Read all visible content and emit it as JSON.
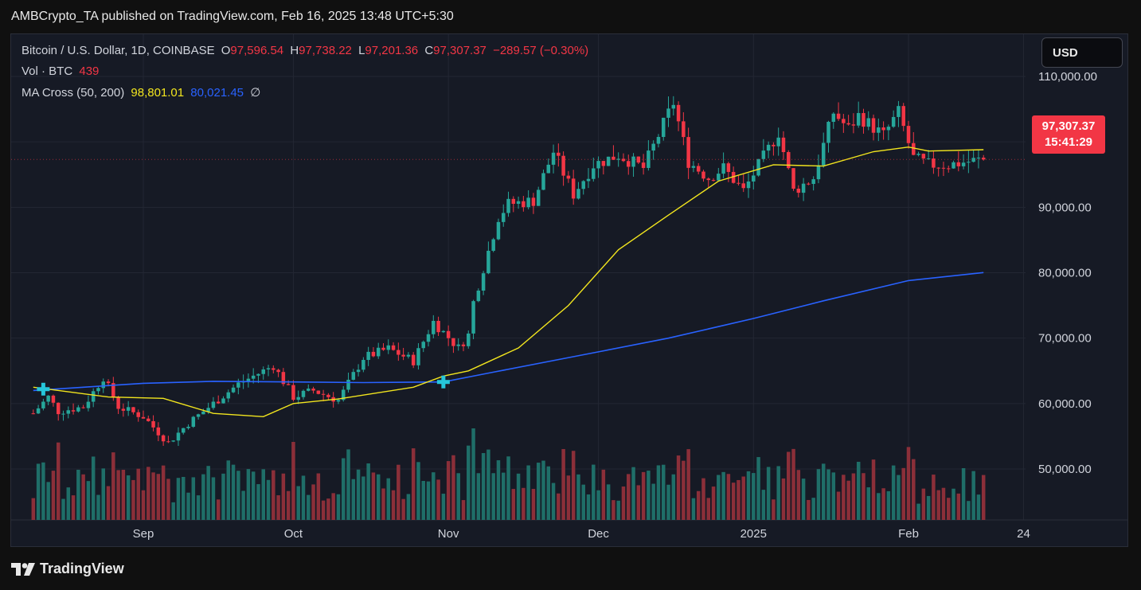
{
  "header": {
    "publish_line": "AMBCrypto_TA published on TradingView.com, Feb 16, 2025 13:48 UTC+5:30"
  },
  "legend": {
    "symbol": "Bitcoin / U.S. Dollar, 1D, COINBASE",
    "o_label": "O",
    "o_value": "97,596.54",
    "h_label": "H",
    "h_value": "97,738.22",
    "l_label": "L",
    "l_value": "97,201.36",
    "c_label": "C",
    "c_value": "97,307.37",
    "change": "−289.57 (−0.30%)",
    "vol_label": "Vol · BTC",
    "vol_value": "439",
    "ma_label": "MA Cross (50, 200)",
    "ma_fast": "98,801.01",
    "ma_slow": "80,021.45",
    "ma_icon": "∅"
  },
  "currency": "USD",
  "price_tag": {
    "price": "97,307.37",
    "countdown": "15:41:29"
  },
  "footer": {
    "brand": "TradingView",
    "logo_icon": "tradingview-logo"
  },
  "colors": {
    "up": "#26a69a",
    "down": "#f23645",
    "ma_fast": "#f2e51e",
    "ma_slow": "#2962ff",
    "cross_marker": "#26c6da",
    "up_volume": "#1f6e68",
    "down_volume": "#8b2f39"
  },
  "chart_data": {
    "type": "candlestick",
    "interval": "1D",
    "x_range": [
      "2024-08-10",
      "2025-02-16"
    ],
    "ylim": [
      44000,
      112000
    ],
    "y_ticks": [
      {
        "value": 110000,
        "label": "110,000.00"
      },
      {
        "value": 100000,
        "label": "100,000.00"
      },
      {
        "value": 90000,
        "label": "90,000.00"
      },
      {
        "value": 80000,
        "label": "80,000.00"
      },
      {
        "value": 70000,
        "label": "70,000.00"
      },
      {
        "value": 60000,
        "label": "60,000.00"
      },
      {
        "value": 50000,
        "label": "50,000.00"
      }
    ],
    "x_ticks": [
      {
        "date": "2024-09-01",
        "label": "Sep"
      },
      {
        "date": "2024-10-01",
        "label": "Oct"
      },
      {
        "date": "2024-11-01",
        "label": "Nov"
      },
      {
        "date": "2024-12-01",
        "label": "Dec"
      },
      {
        "date": "2025-01-01",
        "label": "2025"
      },
      {
        "date": "2025-02-01",
        "label": "Feb"
      },
      {
        "date": "2025-02-24",
        "label": "24"
      }
    ],
    "close_anchors": [
      [
        "2024-08-10",
        58500
      ],
      [
        "2024-08-13",
        61000
      ],
      [
        "2024-08-15",
        58800
      ],
      [
        "2024-08-20",
        59500
      ],
      [
        "2024-08-24",
        64000
      ],
      [
        "2024-08-27",
        59500
      ],
      [
        "2024-09-01",
        58000
      ],
      [
        "2024-09-06",
        54000
      ],
      [
        "2024-09-10",
        57000
      ],
      [
        "2024-09-15",
        60000
      ],
      [
        "2024-09-20",
        63000
      ],
      [
        "2024-09-27",
        65800
      ],
      [
        "2024-10-01",
        61000
      ],
      [
        "2024-10-05",
        62000
      ],
      [
        "2024-10-10",
        60500
      ],
      [
        "2024-10-15",
        67000
      ],
      [
        "2024-10-20",
        68400
      ],
      [
        "2024-10-25",
        66500
      ],
      [
        "2024-10-29",
        72500
      ],
      [
        "2024-11-03",
        68500
      ],
      [
        "2024-11-05",
        70500
      ],
      [
        "2024-11-06",
        75500
      ],
      [
        "2024-11-11",
        88500
      ],
      [
        "2024-11-13",
        90500
      ],
      [
        "2024-11-18",
        91000
      ],
      [
        "2024-11-22",
        98500
      ],
      [
        "2024-11-26",
        92000
      ],
      [
        "2024-11-30",
        96500
      ],
      [
        "2024-12-05",
        98000
      ],
      [
        "2024-12-10",
        96000
      ],
      [
        "2024-12-16",
        106000
      ],
      [
        "2024-12-19",
        97000
      ],
      [
        "2024-12-23",
        94500
      ],
      [
        "2024-12-26",
        96000
      ],
      [
        "2024-12-30",
        92500
      ],
      [
        "2025-01-06",
        101500
      ],
      [
        "2025-01-09",
        92500
      ],
      [
        "2025-01-13",
        94500
      ],
      [
        "2025-01-17",
        104500
      ],
      [
        "2025-01-20",
        102000
      ],
      [
        "2025-01-22",
        104000
      ],
      [
        "2025-01-27",
        101000
      ],
      [
        "2025-01-30",
        104500
      ],
      [
        "2025-02-02",
        97500
      ],
      [
        "2025-02-05",
        96500
      ],
      [
        "2025-02-09",
        96500
      ],
      [
        "2025-02-13",
        97000
      ],
      [
        "2025-02-16",
        97307
      ]
    ],
    "volume_scale_max": 1.0,
    "ma_fast": {
      "name": "MA 50",
      "points": [
        [
          "2024-08-10",
          62500
        ],
        [
          "2024-08-25",
          61000
        ],
        [
          "2024-09-05",
          60800
        ],
        [
          "2024-09-15",
          58500
        ],
        [
          "2024-09-25",
          58000
        ],
        [
          "2024-10-01",
          60000
        ],
        [
          "2024-10-10",
          60700
        ],
        [
          "2024-10-25",
          62500
        ],
        [
          "2024-10-31",
          64200
        ],
        [
          "2024-11-05",
          65000
        ],
        [
          "2024-11-15",
          68500
        ],
        [
          "2024-11-25",
          75000
        ],
        [
          "2024-12-05",
          83500
        ],
        [
          "2024-12-15",
          88800
        ],
        [
          "2024-12-25",
          94000
        ],
        [
          "2025-01-05",
          96500
        ],
        [
          "2025-01-15",
          96300
        ],
        [
          "2025-01-25",
          98500
        ],
        [
          "2025-02-01",
          99200
        ],
        [
          "2025-02-05",
          98600
        ],
        [
          "2025-02-16",
          98801
        ]
      ]
    },
    "ma_slow": {
      "name": "MA 200",
      "points": [
        [
          "2024-08-10",
          62000
        ],
        [
          "2024-09-01",
          63100
        ],
        [
          "2024-09-15",
          63400
        ],
        [
          "2024-10-01",
          63300
        ],
        [
          "2024-10-15",
          63200
        ],
        [
          "2024-10-31",
          63300
        ],
        [
          "2024-11-10",
          64800
        ],
        [
          "2024-12-01",
          67900
        ],
        [
          "2024-12-15",
          70000
        ],
        [
          "2025-01-01",
          73000
        ],
        [
          "2025-01-15",
          75700
        ],
        [
          "2025-02-01",
          78800
        ],
        [
          "2025-02-16",
          80021
        ]
      ]
    },
    "cross_markers": [
      {
        "date": "2024-08-12",
        "value": 62200
      },
      {
        "date": "2024-10-31",
        "value": 63300
      }
    ]
  }
}
